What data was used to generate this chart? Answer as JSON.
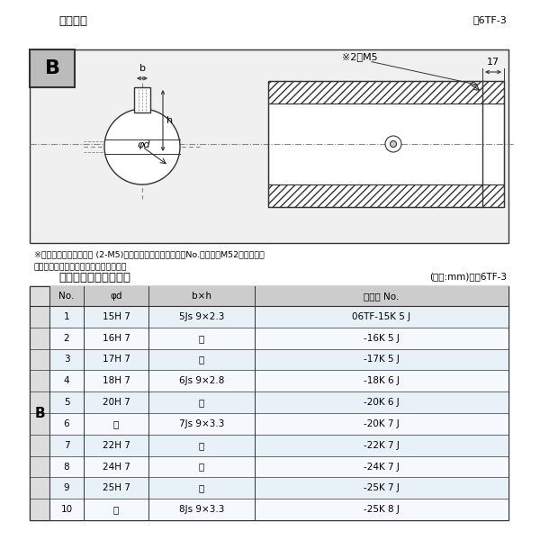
{
  "title_top": "軸穴形状",
  "fig_label_top": "囶6TF-3",
  "title_bottom": "軸穴形状コード一覧表",
  "unit_label": "(単位:mm)　表6TF-3",
  "note1": "※セットボルト用タップ (2-M5)が必要な場合は右記コードNo.の末尾にM52を付ける。",
  "note2": "（セットボルトは付属されています。）",
  "dim_label_17": "17",
  "dim_label_2M5": "※2－M5",
  "dim_b": "b",
  "dim_h": "h",
  "dim_phid": "φd",
  "label_B_diag": "B",
  "label_B_table": "B",
  "col_headers": [
    "No.",
    "φd",
    "b×h",
    "コード No."
  ],
  "rows": [
    [
      "1",
      "15H 7",
      "5Js 9×2.3",
      "06TF-15K 5 J"
    ],
    [
      "2",
      "16H 7",
      "〃",
      "-16K 5 J"
    ],
    [
      "3",
      "17H 7",
      "〃",
      "-17K 5 J"
    ],
    [
      "4",
      "18H 7",
      "6Js 9×2.8",
      "-18K 6 J"
    ],
    [
      "5",
      "20H 7",
      "〃",
      "-20K 6 J"
    ],
    [
      "6",
      "〃",
      "7Js 9×3.3",
      "-20K 7 J"
    ],
    [
      "7",
      "22H 7",
      "〃",
      "-22K 7 J"
    ],
    [
      "8",
      "24H 7",
      "〃",
      "-24K 7 J"
    ],
    [
      "9",
      "25H 7",
      "〃",
      "-25K 7 J"
    ],
    [
      "10",
      "〃",
      "8Js 9×3.3",
      "-25K 8 J"
    ]
  ],
  "bg_color": "#ffffff",
  "border_color": "#333333",
  "text_color": "#000000",
  "hatch_color": "#555555",
  "row_alt_color": "#ddeeff",
  "header_bg": "#cccccc",
  "b_col_bg": "#dddddd",
  "diagram_bg": "#f0f0f0"
}
